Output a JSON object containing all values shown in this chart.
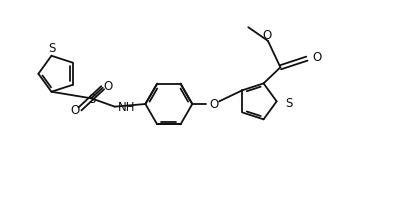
{
  "bg_color": "#ffffff",
  "line_color": "#111111",
  "line_width": 1.3,
  "text_color": "#111111",
  "figsize": [
    4.02,
    2.08
  ],
  "dpi": 100,
  "xlim": [
    0,
    10.5
  ],
  "ylim": [
    0,
    5.5
  ]
}
